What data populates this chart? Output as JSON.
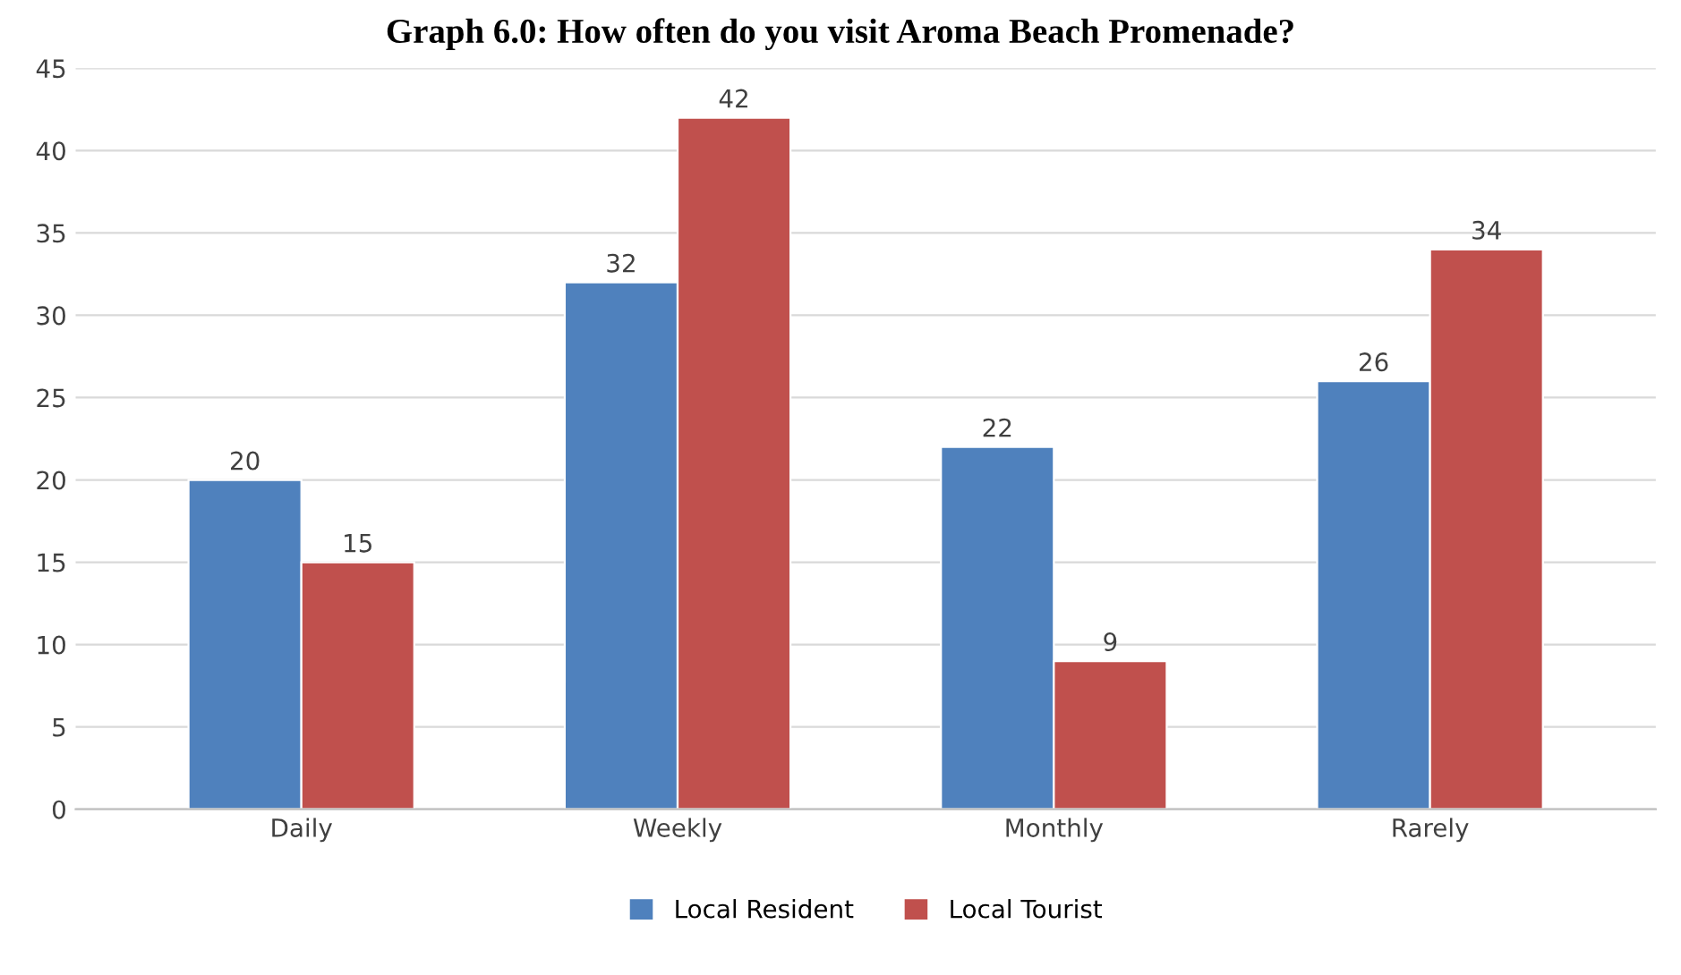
{
  "chart_data": {
    "type": "bar",
    "title": "Graph 6.0: How often do you visit Aroma Beach Promenade?",
    "categories": [
      "Daily",
      "Weekly",
      "Monthly",
      "Rarely"
    ],
    "series": [
      {
        "name": "Local Resident",
        "color": "#4f81bd",
        "values": [
          20,
          32,
          22,
          26
        ]
      },
      {
        "name": "Local Tourist",
        "color": "#c0504d",
        "values": [
          15,
          42,
          9,
          34
        ]
      }
    ],
    "ylim": [
      0,
      45
    ],
    "yticks": [
      0,
      5,
      10,
      15,
      20,
      25,
      30,
      35,
      40,
      45
    ],
    "grid": "y",
    "legend": "bottom",
    "data_labels": true
  }
}
